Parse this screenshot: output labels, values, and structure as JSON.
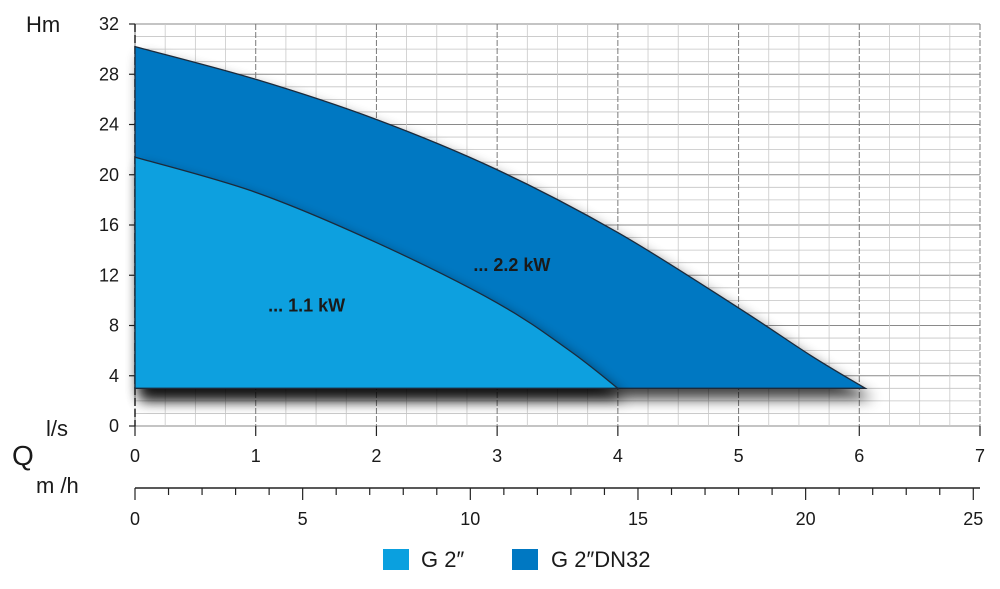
{
  "chart_data": {
    "type": "area",
    "axes": {
      "y": {
        "unit": "Hm",
        "ticks": [
          "0",
          "4",
          "8",
          "12",
          "16",
          "20",
          "24",
          "28",
          "32"
        ],
        "ylim": [
          0,
          32
        ]
      },
      "x_ls": {
        "unit": "l/s",
        "ticks": [
          "0",
          "1",
          "2",
          "3",
          "4",
          "5",
          "6",
          "7"
        ],
        "xlim": [
          0,
          7
        ]
      },
      "x_m3h": {
        "unit": "m /h",
        "ticks": [
          "0",
          "5",
          "10",
          "15",
          "20",
          "25"
        ],
        "xlim": [
          0,
          25.2
        ]
      },
      "q_label": "Q"
    },
    "grid": true,
    "series": [
      {
        "name": "G 2″",
        "color": "#0aa0df",
        "area_label": "... 1.1 kW",
        "label_at": [
          1.6,
          9.6
        ],
        "points": [
          [
            0,
            21.4
          ],
          [
            1,
            18.6
          ],
          [
            2,
            14.6
          ],
          [
            3,
            9.8
          ],
          [
            3.6,
            6.0
          ],
          [
            4,
            3.0
          ]
        ],
        "base": 3.0
      },
      {
        "name": "G 2″DN32",
        "color": "#0078c2",
        "area_label": "... 2.2 kW",
        "label_at": [
          3.3,
          12.8
        ],
        "points": [
          [
            0,
            30.2
          ],
          [
            1,
            27.6
          ],
          [
            2,
            24.4
          ],
          [
            3,
            20.4
          ],
          [
            4,
            15.4
          ],
          [
            5,
            9.4
          ],
          [
            5.6,
            5.6
          ],
          [
            6.05,
            3.0
          ]
        ],
        "base": 3.0
      }
    ]
  }
}
